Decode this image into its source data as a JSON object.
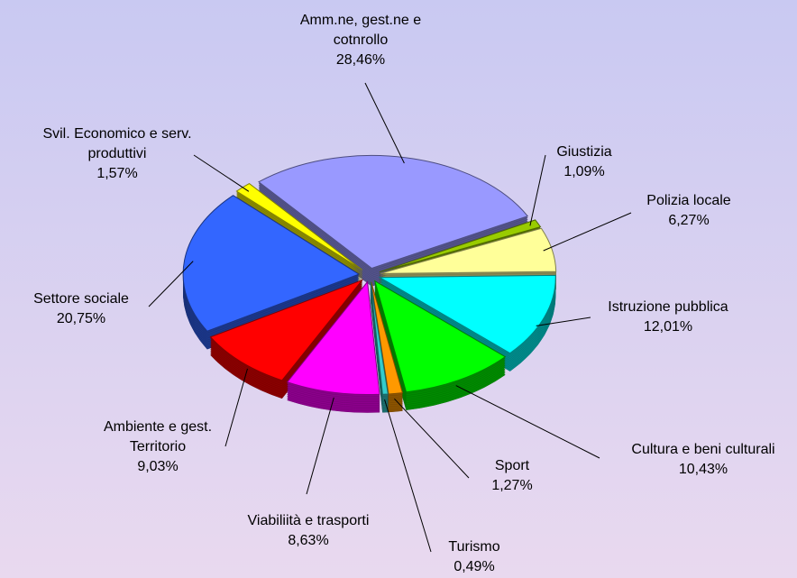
{
  "chart_data": {
    "type": "pie3d",
    "categories": [
      "Amm.ne, gest.ne e cotnrollo",
      "Giustizia",
      "Polizia locale",
      "Istruzione pubblica",
      "Cultura e beni culturali",
      "Sport",
      "Turismo",
      "Viabiliità e trasporti",
      "Ambiente e gest. Territorio",
      "Settore sociale",
      "Svil. Economico e serv. produttivi"
    ],
    "values": [
      28.46,
      1.09,
      6.27,
      12.01,
      10.43,
      1.27,
      0.49,
      8.63,
      9.03,
      20.75,
      1.57
    ],
    "value_labels": [
      "28,46%",
      "1,09%",
      "6,27%",
      "12,01%",
      "10,43%",
      "1,27%",
      "0,49%",
      "8,63%",
      "9,03%",
      "20,75%",
      "1,57%"
    ],
    "colors": [
      "#9999ff",
      "#99cc00",
      "#ffff99",
      "#00ffff",
      "#00ff00",
      "#ff9900",
      "#33cccc",
      "#ff00ff",
      "#ff0000",
      "#3366ff",
      "#ffff00"
    ]
  }
}
